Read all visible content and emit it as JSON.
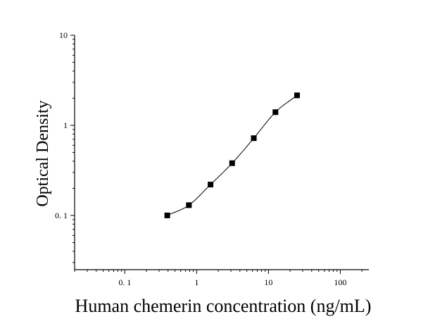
{
  "chart_data": {
    "type": "scatter",
    "title": "",
    "xlabel": "Human chemerin concentration (ng/mL)",
    "ylabel": "Optical Density",
    "x_scale": "log",
    "y_scale": "log",
    "xlim": [
      0.02,
      250
    ],
    "ylim": [
      0.025,
      10
    ],
    "x_ticks": [
      0.1,
      1,
      10,
      100
    ],
    "x_tick_labels": [
      "0. 1",
      "1",
      "10",
      "100"
    ],
    "y_ticks": [
      0.1,
      1,
      10
    ],
    "y_tick_labels": [
      "0. 1",
      "1",
      "10"
    ],
    "grid": false,
    "legend": "none",
    "marker": "square",
    "fit_line": "smooth curve through points",
    "series": [
      {
        "x": [
          0.39,
          0.78,
          1.56,
          3.12,
          6.25,
          12.5,
          25
        ],
        "y": [
          0.1,
          0.13,
          0.22,
          0.38,
          0.72,
          1.4,
          2.15
        ]
      }
    ],
    "colors": {
      "marker": "#000000",
      "line": "#000000",
      "axis": "#000000"
    }
  }
}
